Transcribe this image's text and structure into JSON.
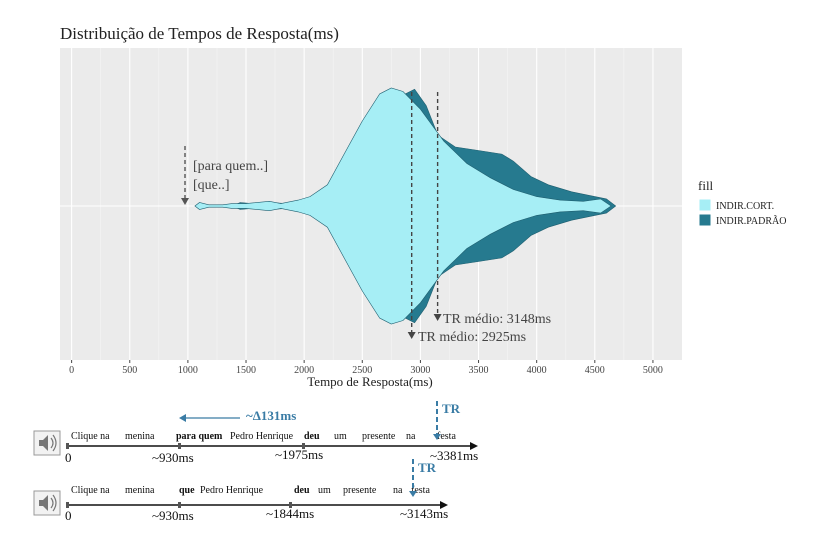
{
  "chart_data": {
    "type": "violin",
    "title": "Distribuição de Tempos de Resposta(ms)",
    "xlabel": "Tempo de Resposta(ms)",
    "ylabel": "",
    "xlim": [
      -100,
      5250
    ],
    "xticks": [
      0,
      500,
      1000,
      1500,
      2000,
      2500,
      3000,
      3500,
      4000,
      4500,
      5000
    ],
    "grid": true,
    "legend": {
      "title": "fill",
      "position": "right"
    },
    "series": [
      {
        "name": "INDIR.CORT.",
        "color": "#a6eef5",
        "mean": 2925,
        "profile": [
          [
            1060,
            0
          ],
          [
            1100,
            0.03
          ],
          [
            1180,
            0.01
          ],
          [
            1300,
            0.01
          ],
          [
            1380,
            0.02
          ],
          [
            1500,
            0.02
          ],
          [
            1700,
            0.04
          ],
          [
            1800,
            0.02
          ],
          [
            1950,
            0.05
          ],
          [
            2050,
            0.08
          ],
          [
            2200,
            0.18
          ],
          [
            2350,
            0.45
          ],
          [
            2500,
            0.72
          ],
          [
            2650,
            0.95
          ],
          [
            2750,
            1.0
          ],
          [
            2850,
            0.97
          ],
          [
            3000,
            0.82
          ],
          [
            3200,
            0.55
          ],
          [
            3400,
            0.36
          ],
          [
            3600,
            0.24
          ],
          [
            3800,
            0.14
          ],
          [
            4000,
            0.08
          ],
          [
            4200,
            0.05
          ],
          [
            4400,
            0.04
          ],
          [
            4550,
            0.06
          ],
          [
            4640,
            0
          ]
        ]
      },
      {
        "name": "INDIR.PADRÃO",
        "color": "#267a8f",
        "mean": 3148,
        "profile": [
          [
            1380,
            0
          ],
          [
            1450,
            0.03
          ],
          [
            1550,
            0.02
          ],
          [
            1700,
            0.03
          ],
          [
            1850,
            0.02
          ],
          [
            2000,
            0.04
          ],
          [
            2200,
            0.1
          ],
          [
            2400,
            0.2
          ],
          [
            2600,
            0.45
          ],
          [
            2750,
            0.68
          ],
          [
            2850,
            0.94
          ],
          [
            2950,
            0.99
          ],
          [
            3050,
            0.85
          ],
          [
            3150,
            0.6
          ],
          [
            3300,
            0.5
          ],
          [
            3500,
            0.47
          ],
          [
            3700,
            0.44
          ],
          [
            3800,
            0.38
          ],
          [
            3950,
            0.25
          ],
          [
            4100,
            0.18
          ],
          [
            4300,
            0.12
          ],
          [
            4500,
            0.08
          ],
          [
            4600,
            0.06
          ],
          [
            4680,
            0
          ]
        ]
      }
    ],
    "annotations": {
      "cue_line1": "[para quem..]",
      "cue_line2": "[que..]",
      "cue_x": 950,
      "mean_label_padrao": "TR médio: 3148ms",
      "mean_label_cort": "TR médio: 2925ms"
    }
  },
  "timeline": {
    "row1": {
      "words": [
        "Clique na",
        "menina",
        "para quem",
        "Pedro Henrique",
        "deu",
        "um",
        "presente",
        "na",
        "festa"
      ],
      "bold": [
        false,
        false,
        true,
        false,
        true,
        false,
        false,
        false,
        false
      ],
      "times": [
        "0",
        "~930ms",
        "~1975ms",
        "~3381ms"
      ],
      "delta": "~Δ131ms",
      "tr": "TR"
    },
    "row2": {
      "words": [
        "Clique na",
        "menina",
        "que",
        "Pedro Henrique",
        "deu",
        "um",
        "presente",
        "na",
        "festa"
      ],
      "bold": [
        false,
        false,
        true,
        false,
        true,
        false,
        false,
        false,
        false
      ],
      "times": [
        "0",
        "~930ms",
        "~1844ms",
        "~3143ms"
      ],
      "tr": "TR"
    }
  },
  "icons": [
    "speaker-icon",
    "speaker-icon"
  ]
}
